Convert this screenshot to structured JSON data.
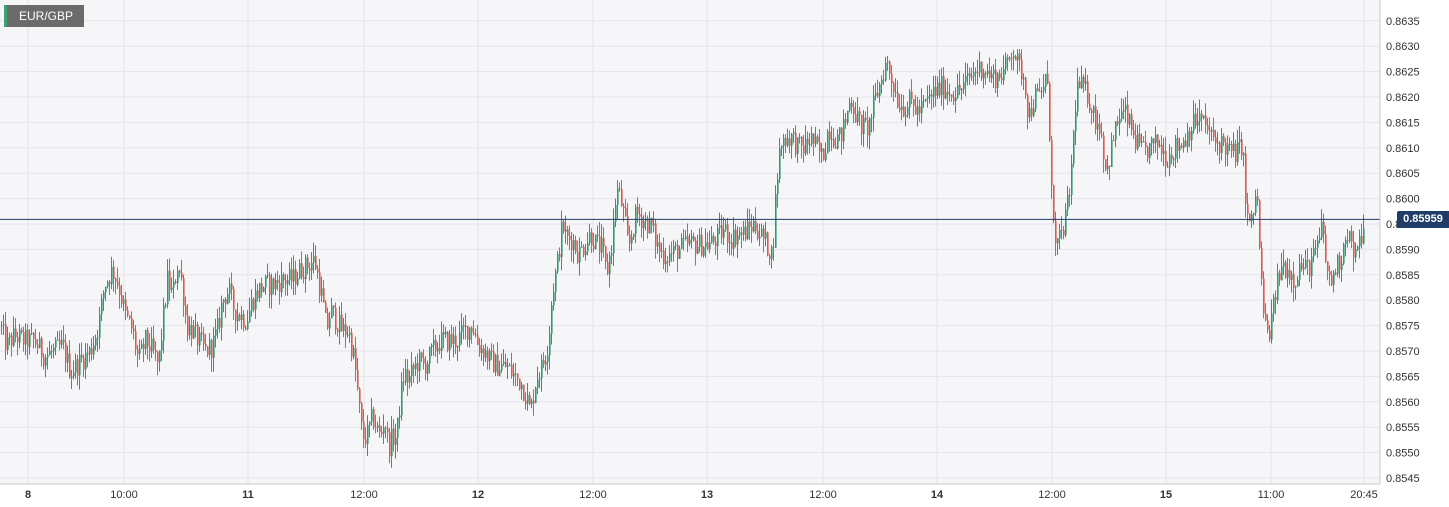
{
  "symbol": "EUR/GBP",
  "last_price_label": "0.85959",
  "colors": {
    "up": "#2e9a74",
    "down": "#d85a4a",
    "last_price_line": "#1f3d66",
    "background": "#f6f6f8",
    "grid": "#e3e3ea"
  },
  "chart_data": {
    "type": "candlestick",
    "y_ticks": [
      "0.8545",
      "0.8550",
      "0.8555",
      "0.8560",
      "0.8565",
      "0.8570",
      "0.8575",
      "0.8580",
      "0.8585",
      "0.8590",
      "0.8595",
      "0.8600",
      "0.8605",
      "0.8610",
      "0.8615",
      "0.8620",
      "0.8625",
      "0.8630",
      "0.8635"
    ],
    "ylim": [
      0.8544,
      0.8638
    ],
    "x_ticks": [
      {
        "label": "8",
        "major": true
      },
      {
        "label": "10:00",
        "major": false
      },
      {
        "label": "11",
        "major": true
      },
      {
        "label": "12:00",
        "major": false
      },
      {
        "label": "12",
        "major": true
      },
      {
        "label": "12:00",
        "major": false
      },
      {
        "label": "13",
        "major": true
      },
      {
        "label": "12:00",
        "major": false
      },
      {
        "label": "14",
        "major": true
      },
      {
        "label": "12:00",
        "major": false
      },
      {
        "label": "15",
        "major": true
      },
      {
        "label": "11:00",
        "major": false
      },
      {
        "label": "20:45",
        "major": false
      }
    ],
    "last_price": 0.85959,
    "grid": true,
    "path": [
      [
        0,
        0.8575
      ],
      [
        6,
        0.8571
      ],
      [
        14,
        0.8573
      ],
      [
        24,
        0.8572
      ],
      [
        34,
        0.8572
      ],
      [
        44,
        0.8569
      ],
      [
        54,
        0.857
      ],
      [
        62,
        0.8571
      ],
      [
        70,
        0.8566
      ],
      [
        80,
        0.8568
      ],
      [
        90,
        0.857
      ],
      [
        98,
        0.8575
      ],
      [
        104,
        0.8583
      ],
      [
        112,
        0.8586
      ],
      [
        118,
        0.8583
      ],
      [
        125,
        0.8577
      ],
      [
        132,
        0.8574
      ],
      [
        138,
        0.8568
      ],
      [
        145,
        0.8572
      ],
      [
        152,
        0.857
      ],
      [
        158,
        0.8567
      ],
      [
        163,
        0.8577
      ],
      [
        167,
        0.8584
      ],
      [
        172,
        0.8581
      ],
      [
        177,
        0.8587
      ],
      [
        182,
        0.8583
      ],
      [
        186,
        0.8575
      ],
      [
        192,
        0.8574
      ],
      [
        198,
        0.8572
      ],
      [
        205,
        0.857
      ],
      [
        212,
        0.8571
      ],
      [
        218,
        0.8575
      ],
      [
        222,
        0.858
      ],
      [
        228,
        0.8582
      ],
      [
        234,
        0.8578
      ],
      [
        240,
        0.8577
      ],
      [
        246,
        0.8576
      ],
      [
        252,
        0.858
      ],
      [
        258,
        0.8582
      ],
      [
        264,
        0.8583
      ],
      [
        272,
        0.8583
      ],
      [
        282,
        0.8584
      ],
      [
        292,
        0.8584
      ],
      [
        300,
        0.8586
      ],
      [
        308,
        0.8587
      ],
      [
        314,
        0.8588
      ],
      [
        318,
        0.8584
      ],
      [
        322,
        0.858
      ],
      [
        326,
        0.8574
      ],
      [
        330,
        0.8578
      ],
      [
        336,
        0.8576
      ],
      [
        342,
        0.8574
      ],
      [
        348,
        0.8574
      ],
      [
        354,
        0.8568
      ],
      [
        358,
        0.856
      ],
      [
        362,
        0.8553
      ],
      [
        366,
        0.8553
      ],
      [
        372,
        0.8557
      ],
      [
        376,
        0.8555
      ],
      [
        380,
        0.8553
      ],
      [
        384,
        0.8557
      ],
      [
        388,
        0.8551
      ],
      [
        392,
        0.8553
      ],
      [
        396,
        0.8553
      ],
      [
        400,
        0.8561
      ],
      [
        404,
        0.8566
      ],
      [
        408,
        0.8564
      ],
      [
        412,
        0.8566
      ],
      [
        418,
        0.8568
      ],
      [
        424,
        0.8567
      ],
      [
        432,
        0.857
      ],
      [
        440,
        0.8572
      ],
      [
        448,
        0.8572
      ],
      [
        456,
        0.8572
      ],
      [
        464,
        0.8574
      ],
      [
        472,
        0.8575
      ],
      [
        478,
        0.8571
      ],
      [
        484,
        0.857
      ],
      [
        490,
        0.8568
      ],
      [
        498,
        0.8567
      ],
      [
        506,
        0.8567
      ],
      [
        514,
        0.8565
      ],
      [
        520,
        0.8564
      ],
      [
        526,
        0.8561
      ],
      [
        530,
        0.8558
      ],
      [
        536,
        0.8565
      ],
      [
        542,
        0.8567
      ],
      [
        548,
        0.8572
      ],
      [
        552,
        0.8582
      ],
      [
        556,
        0.8586
      ],
      [
        562,
        0.8595
      ],
      [
        566,
        0.8592
      ],
      [
        572,
        0.8592
      ],
      [
        578,
        0.8589
      ],
      [
        584,
        0.8591
      ],
      [
        590,
        0.8593
      ],
      [
        596,
        0.8591
      ],
      [
        602,
        0.859
      ],
      [
        606,
        0.8585
      ],
      [
        612,
        0.8592
      ],
      [
        616,
        0.8602
      ],
      [
        620,
        0.86
      ],
      [
        624,
        0.8596
      ],
      [
        628,
        0.859
      ],
      [
        632,
        0.8594
      ],
      [
        636,
        0.8597
      ],
      [
        642,
        0.8596
      ],
      [
        648,
        0.8595
      ],
      [
        652,
        0.8594
      ],
      [
        656,
        0.8591
      ],
      [
        662,
        0.8589
      ],
      [
        670,
        0.8589
      ],
      [
        678,
        0.859
      ],
      [
        688,
        0.8591
      ],
      [
        698,
        0.8591
      ],
      [
        708,
        0.8591
      ],
      [
        716,
        0.8592
      ],
      [
        724,
        0.8594
      ],
      [
        730,
        0.8592
      ],
      [
        736,
        0.8593
      ],
      [
        742,
        0.8593
      ],
      [
        748,
        0.8594
      ],
      [
        754,
        0.8595
      ],
      [
        760,
        0.8593
      ],
      [
        766,
        0.8591
      ],
      [
        772,
        0.8589
      ],
      [
        776,
        0.8603
      ],
      [
        780,
        0.8611
      ],
      [
        786,
        0.8612
      ],
      [
        792,
        0.8612
      ],
      [
        798,
        0.861
      ],
      [
        804,
        0.861
      ],
      [
        810,
        0.8612
      ],
      [
        816,
        0.861
      ],
      [
        822,
        0.8608
      ],
      [
        828,
        0.8614
      ],
      [
        834,
        0.8612
      ],
      [
        840,
        0.8612
      ],
      [
        846,
        0.8616
      ],
      [
        850,
        0.862
      ],
      [
        856,
        0.8616
      ],
      [
        862,
        0.8614
      ],
      [
        868,
        0.8614
      ],
      [
        874,
        0.8619
      ],
      [
        880,
        0.8623
      ],
      [
        886,
        0.8627
      ],
      [
        892,
        0.8623
      ],
      [
        898,
        0.8619
      ],
      [
        904,
        0.8618
      ],
      [
        910,
        0.8619
      ],
      [
        918,
        0.8617
      ],
      [
        926,
        0.8619
      ],
      [
        934,
        0.8621
      ],
      [
        942,
        0.8622
      ],
      [
        950,
        0.8621
      ],
      [
        958,
        0.8621
      ],
      [
        966,
        0.8623
      ],
      [
        974,
        0.8625
      ],
      [
        982,
        0.8626
      ],
      [
        990,
        0.8624
      ],
      [
        998,
        0.8624
      ],
      [
        1006,
        0.8626
      ],
      [
        1012,
        0.863
      ],
      [
        1018,
        0.8626
      ],
      [
        1024,
        0.8624
      ],
      [
        1028,
        0.8616
      ],
      [
        1034,
        0.862
      ],
      [
        1040,
        0.862
      ],
      [
        1046,
        0.8625
      ],
      [
        1050,
        0.8609
      ],
      [
        1054,
        0.859
      ],
      [
        1060,
        0.8592
      ],
      [
        1066,
        0.8597
      ],
      [
        1070,
        0.8603
      ],
      [
        1076,
        0.8622
      ],
      [
        1082,
        0.8622
      ],
      [
        1088,
        0.862
      ],
      [
        1094,
        0.8616
      ],
      [
        1100,
        0.8614
      ],
      [
        1106,
        0.8605
      ],
      [
        1112,
        0.8611
      ],
      [
        1118,
        0.8616
      ],
      [
        1124,
        0.8617
      ],
      [
        1130,
        0.8614
      ],
      [
        1136,
        0.8611
      ],
      [
        1142,
        0.8609
      ],
      [
        1150,
        0.861
      ],
      [
        1158,
        0.8611
      ],
      [
        1166,
        0.8608
      ],
      [
        1174,
        0.861
      ],
      [
        1182,
        0.8611
      ],
      [
        1190,
        0.8614
      ],
      [
        1198,
        0.8616
      ],
      [
        1206,
        0.8614
      ],
      [
        1214,
        0.8611
      ],
      [
        1222,
        0.8611
      ],
      [
        1230,
        0.8609
      ],
      [
        1236,
        0.8609
      ],
      [
        1242,
        0.8611
      ],
      [
        1246,
        0.8596
      ],
      [
        1252,
        0.8595
      ],
      [
        1256,
        0.8603
      ],
      [
        1260,
        0.8586
      ],
      [
        1264,
        0.8575
      ],
      [
        1268,
        0.8573
      ],
      [
        1272,
        0.8577
      ],
      [
        1276,
        0.8583
      ],
      [
        1282,
        0.8587
      ],
      [
        1288,
        0.8586
      ],
      [
        1294,
        0.8584
      ],
      [
        1300,
        0.8587
      ],
      [
        1306,
        0.8586
      ],
      [
        1312,
        0.8588
      ],
      [
        1318,
        0.8591
      ],
      [
        1322,
        0.8595
      ],
      [
        1326,
        0.8586
      ],
      [
        1330,
        0.8583
      ],
      [
        1334,
        0.8586
      ],
      [
        1340,
        0.8588
      ],
      [
        1346,
        0.8594
      ],
      [
        1350,
        0.8592
      ],
      [
        1354,
        0.8588
      ],
      [
        1358,
        0.859
      ],
      [
        1364,
        0.8596
      ]
    ]
  }
}
